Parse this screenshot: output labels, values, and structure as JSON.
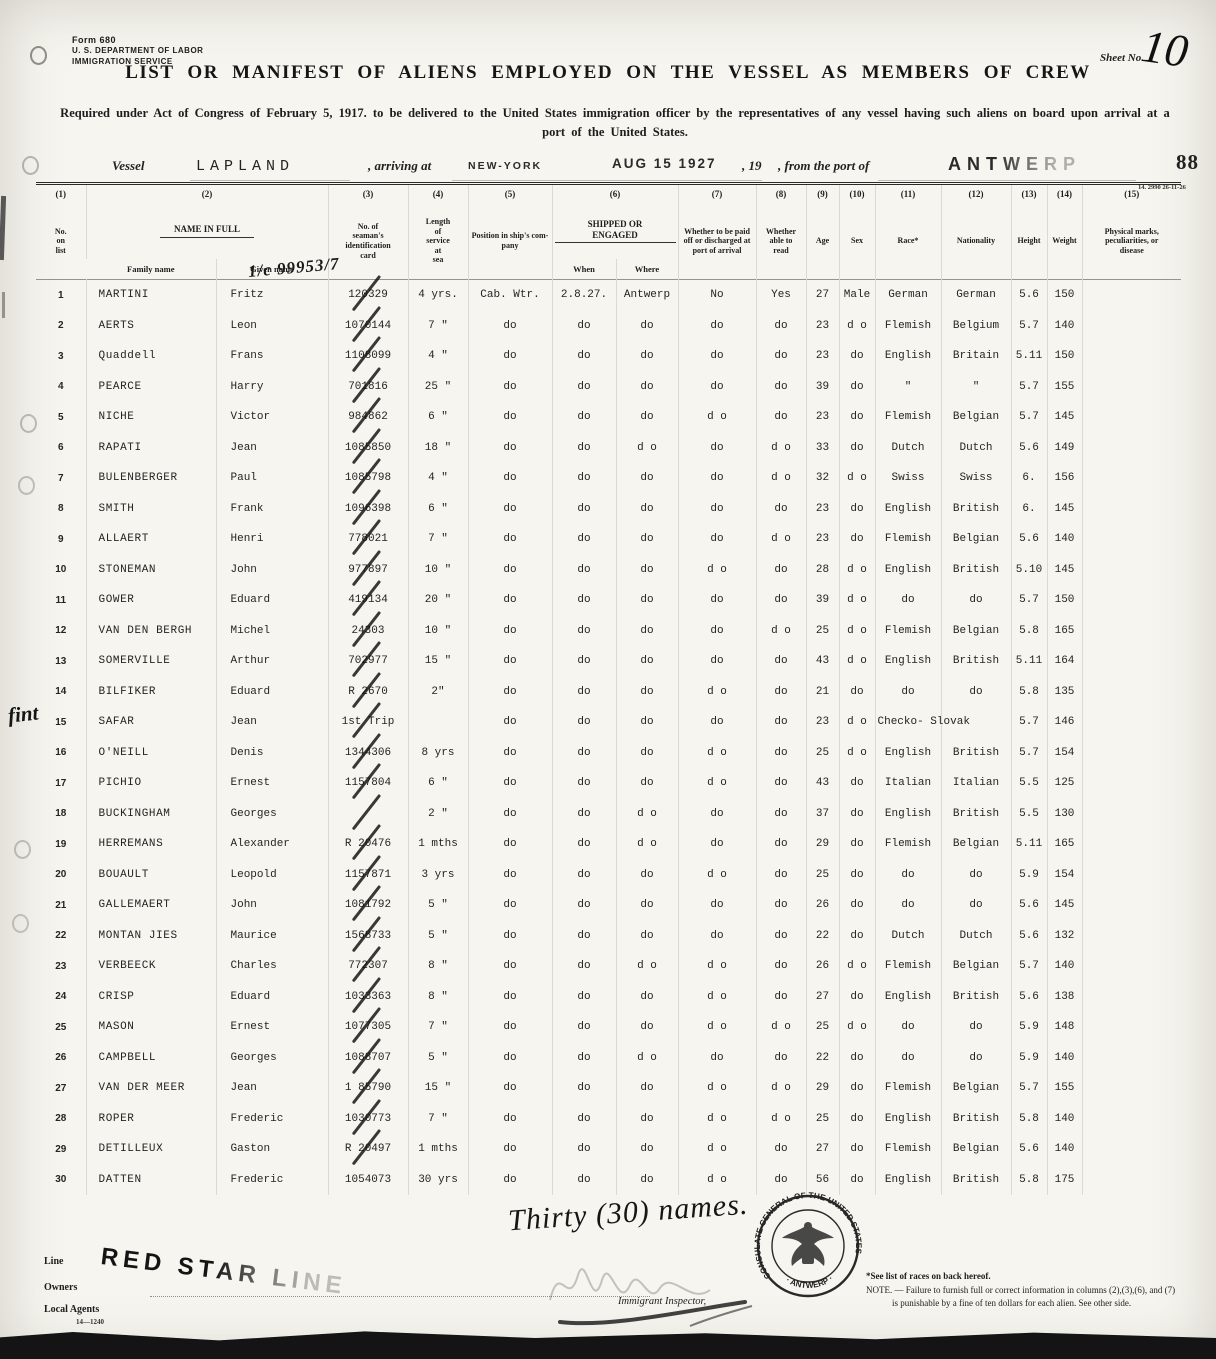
{
  "header": {
    "form_label": "Form 680",
    "agency_line1": "U. S. DEPARTMENT OF LABOR",
    "agency_line2": "IMMIGRATION SERVICE",
    "sheet_label": "Sheet No.",
    "sheet_number": "10",
    "title": "LIST OR MANIFEST OF ALIENS EMPLOYED ON THE VESSEL AS MEMBERS OF CREW",
    "subtitle_line1": "Required under Act of Congress of February 5, 1917. to be delivered to the United States immigration officer by the representatives of any vessel having such aliens on board upon arrival at a",
    "subtitle_line2": "port of the United States.",
    "vessel_label": "Vessel",
    "vessel_name": "LAPLAND",
    "arriving_label": ", arriving at",
    "arrival_port": "NEW-YORK",
    "arrival_date_stamp": "AUG 15 1927",
    "year_label": ", 19",
    "from_port_label": ", from the port of",
    "departure_port": "ANTWERP",
    "page_number": "88",
    "form_code": "14. 2990 26-11-26",
    "handwritten_annotation": "1/c 99953/7"
  },
  "margin_note": "fint",
  "table": {
    "column_numbers": [
      "(1)",
      "(2)",
      "(3)",
      "(4)",
      "(5)",
      "(6)",
      "(7)",
      "(8)",
      "(9)",
      "(10)",
      "(11)",
      "(12)",
      "(13)",
      "(14)",
      "(15)"
    ],
    "headers": {
      "no": "No.\non\nlist",
      "name_group": "NAME IN FULL",
      "family": "Family name",
      "given": "Given name",
      "card": "No. of\nseaman's\nidentification\ncard",
      "service": "Length\nof\nservice\nat\nsea",
      "position": "Position in ship's com-\npany",
      "shipped_group": "SHIPPED OR ENGAGED",
      "when": "When",
      "where": "Where",
      "paid_off": "Whether to be paid\noff or discharged at\nport of arrival",
      "read": "Whether\nable to\nread",
      "age": "Age",
      "sex": "Sex",
      "race": "Race*",
      "nationality": "Nationality",
      "height": "Height",
      "weight": "Weight",
      "marks": "Physical marks,\npeculiarities, or\ndisease"
    },
    "rows": [
      {
        "no": "1",
        "family": "MARTINI",
        "given": "Fritz",
        "card": "120329",
        "service": "4 yrs.",
        "position": "Cab. Wtr.",
        "when": "2.8.27.",
        "where": "Antwerp",
        "paid_off": "No",
        "read": "Yes",
        "age": "27",
        "sex": "Male",
        "race": "German",
        "nationality": "German",
        "height": "5.6",
        "weight": "150",
        "marks": ""
      },
      {
        "no": "2",
        "family": "AERTS",
        "given": "Leon",
        "card": "1070144",
        "service": "7 \"",
        "position": "do",
        "when": "do",
        "where": "do",
        "paid_off": "do",
        "read": "do",
        "age": "23",
        "sex": "d o",
        "race": "Flemish",
        "nationality": "Belgium",
        "height": "5.7",
        "weight": "140",
        "marks": ""
      },
      {
        "no": "3",
        "family": "Quaddell",
        "given": "Frans",
        "card": "1108099",
        "service": "4 \"",
        "position": "do",
        "when": "do",
        "where": "do",
        "paid_off": "do",
        "read": "do",
        "age": "23",
        "sex": "do",
        "race": "English",
        "nationality": "Britain",
        "height": "5.11",
        "weight": "150",
        "marks": ""
      },
      {
        "no": "4",
        "family": "PEARCE",
        "given": "Harry",
        "card": "701816",
        "service": "25 \"",
        "position": "do",
        "when": "do",
        "where": "do",
        "paid_off": "do",
        "read": "do",
        "age": "39",
        "sex": "do",
        "race": "\"",
        "nationality": "\"",
        "height": "5.7",
        "weight": "155",
        "marks": ""
      },
      {
        "no": "5",
        "family": "NICHE",
        "given": "Victor",
        "card": "984862",
        "service": "6 \"",
        "position": "do",
        "when": "do",
        "where": "do",
        "paid_off": "d o",
        "read": "do",
        "age": "23",
        "sex": "do",
        "race": "Flemish",
        "nationality": "Belgian",
        "height": "5.7",
        "weight": "145",
        "marks": ""
      },
      {
        "no": "6",
        "family": "RAPATI",
        "given": "Jean",
        "card": "1085850",
        "service": "18 \"",
        "position": "do",
        "when": "do",
        "where": "d o",
        "paid_off": "do",
        "read": "d o",
        "age": "33",
        "sex": "do",
        "race": "Dutch",
        "nationality": "Dutch",
        "height": "5.6",
        "weight": "149",
        "marks": ""
      },
      {
        "no": "7",
        "family": "BULENBERGER",
        "given": "Paul",
        "card": "1085798",
        "service": "4 \"",
        "position": "do",
        "when": "do",
        "where": "do",
        "paid_off": "do",
        "read": "d o",
        "age": "32",
        "sex": "d o",
        "race": "Swiss",
        "nationality": "Swiss",
        "height": "6.",
        "weight": "156",
        "marks": ""
      },
      {
        "no": "8",
        "family": "SMITH",
        "given": "Frank",
        "card": "1096398",
        "service": "6 \"",
        "position": "do",
        "when": "do",
        "where": "do",
        "paid_off": "do",
        "read": "do",
        "age": "23",
        "sex": "do",
        "race": "English",
        "nationality": "British",
        "height": "6.",
        "weight": "145",
        "marks": ""
      },
      {
        "no": "9",
        "family": "ALLAERT",
        "given": "Henri",
        "card": "778021",
        "service": "7 \"",
        "position": "do",
        "when": "do",
        "where": "do",
        "paid_off": "do",
        "read": "d o",
        "age": "23",
        "sex": "do",
        "race": "Flemish",
        "nationality": "Belgian",
        "height": "5.6",
        "weight": "140",
        "marks": ""
      },
      {
        "no": "10",
        "family": "STONEMAN",
        "given": "John",
        "card": "977897",
        "service": "10 \"",
        "position": "do",
        "when": "do",
        "where": "do",
        "paid_off": "d o",
        "read": "do",
        "age": "28",
        "sex": "d o",
        "race": "English",
        "nationality": "British",
        "height": "5.10",
        "weight": "145",
        "marks": ""
      },
      {
        "no": "11",
        "family": "GOWER",
        "given": "Eduard",
        "card": "419134",
        "service": "20 \"",
        "position": "do",
        "when": "do",
        "where": "do",
        "paid_off": "do",
        "read": "do",
        "age": "39",
        "sex": "d o",
        "race": "do",
        "nationality": "do",
        "height": "5.7",
        "weight": "150",
        "marks": ""
      },
      {
        "no": "12",
        "family": "VAN DEN BERGH",
        "given": "Michel",
        "card": "24303",
        "service": "10 \"",
        "position": "do",
        "when": "do",
        "where": "do",
        "paid_off": "do",
        "read": "d o",
        "age": "25",
        "sex": "d o",
        "race": "Flemish",
        "nationality": "Belgian",
        "height": "5.8",
        "weight": "165",
        "marks": ""
      },
      {
        "no": "13",
        "family": "SOMERVILLE",
        "given": "Arthur",
        "card": "702977",
        "service": "15 \"",
        "position": "do",
        "when": "do",
        "where": "do",
        "paid_off": "do",
        "read": "do",
        "age": "43",
        "sex": "d o",
        "race": "English",
        "nationality": "British",
        "height": "5.11",
        "weight": "164",
        "marks": ""
      },
      {
        "no": "14",
        "family": "BILFIKER",
        "given": "Eduard",
        "card": "R 2670",
        "service": "2\"",
        "position": "do",
        "when": "do",
        "where": "do",
        "paid_off": "d o",
        "read": "do",
        "age": "21",
        "sex": "do",
        "race": "do",
        "nationality": "do",
        "height": "5.8",
        "weight": "135",
        "marks": ""
      },
      {
        "no": "15",
        "family": "SAFAR",
        "given": "Jean",
        "card": "1st Trip",
        "service": "",
        "position": "do",
        "when": "do",
        "where": "do",
        "paid_off": "do",
        "read": "do",
        "age": "23",
        "sex": "d o",
        "race": "Checko- Slovak",
        "nationality": "",
        "height": "5.7",
        "weight": "146",
        "marks": ""
      },
      {
        "no": "16",
        "family": "O'NEILL",
        "given": "Denis",
        "card": "1344306",
        "service": "8 yrs",
        "position": "do",
        "when": "do",
        "where": "do",
        "paid_off": "d o",
        "read": "do",
        "age": "25",
        "sex": "d o",
        "race": "English",
        "nationality": "British",
        "height": "5.7",
        "weight": "154",
        "marks": ""
      },
      {
        "no": "17",
        "family": "PICHIO",
        "given": "Ernest",
        "card": "1157804",
        "service": "6 \"",
        "position": "do",
        "when": "do",
        "where": "do",
        "paid_off": "d o",
        "read": "do",
        "age": "43",
        "sex": "do",
        "race": "Italian",
        "nationality": "Italian",
        "height": "5.5",
        "weight": "125",
        "marks": ""
      },
      {
        "no": "18",
        "family": "BUCKINGHAM",
        "given": "Georges",
        "card": "",
        "service": "2 \"",
        "position": "do",
        "when": "do",
        "where": "d o",
        "paid_off": "do",
        "read": "do",
        "age": "37",
        "sex": "do",
        "race": "English",
        "nationality": "British",
        "height": "5.5",
        "weight": "130",
        "marks": ""
      },
      {
        "no": "19",
        "family": "HERREMANS",
        "given": "Alexander",
        "card": "R 20476",
        "service": "1 mths",
        "position": "do",
        "when": "do",
        "where": "d o",
        "paid_off": "do",
        "read": "do",
        "age": "29",
        "sex": "do",
        "race": "Flemish",
        "nationality": "Belgian",
        "height": "5.11",
        "weight": "165",
        "marks": ""
      },
      {
        "no": "20",
        "family": "BOUAULT",
        "given": "Leopold",
        "card": "1157871",
        "service": "3 yrs",
        "position": "do",
        "when": "do",
        "where": "do",
        "paid_off": "d o",
        "read": "do",
        "age": "25",
        "sex": "do",
        "race": "do",
        "nationality": "do",
        "height": "5.9",
        "weight": "154",
        "marks": ""
      },
      {
        "no": "21",
        "family": "GALLEMAERT",
        "given": "John",
        "card": "1081792",
        "service": "5 \"",
        "position": "do",
        "when": "do",
        "where": "do",
        "paid_off": "do",
        "read": "do",
        "age": "26",
        "sex": "do",
        "race": "do",
        "nationality": "do",
        "height": "5.6",
        "weight": "145",
        "marks": ""
      },
      {
        "no": "22",
        "family": "MONTAN JIES",
        "given": "Maurice",
        "card": "1568733",
        "service": "5 \"",
        "position": "do",
        "when": "do",
        "where": "do",
        "paid_off": "do",
        "read": "do",
        "age": "22",
        "sex": "do",
        "race": "Dutch",
        "nationality": "Dutch",
        "height": "5.6",
        "weight": "132",
        "marks": ""
      },
      {
        "no": "23",
        "family": "VERBEECK",
        "given": "Charles",
        "card": "772307",
        "service": "8 \"",
        "position": "do",
        "when": "do",
        "where": "d o",
        "paid_off": "d o",
        "read": "do",
        "age": "26",
        "sex": "d o",
        "race": "Flemish",
        "nationality": "Belgian",
        "height": "5.7",
        "weight": "140",
        "marks": ""
      },
      {
        "no": "24",
        "family": "CRISP",
        "given": "Eduard",
        "card": "1033363",
        "service": "8 \"",
        "position": "do",
        "when": "do",
        "where": "do",
        "paid_off": "d o",
        "read": "do",
        "age": "27",
        "sex": "do",
        "race": "English",
        "nationality": "British",
        "height": "5.6",
        "weight": "138",
        "marks": ""
      },
      {
        "no": "25",
        "family": "MASON",
        "given": "Ernest",
        "card": "1077305",
        "service": "7 \"",
        "position": "do",
        "when": "do",
        "where": "do",
        "paid_off": "d o",
        "read": "d o",
        "age": "25",
        "sex": "d o",
        "race": "do",
        "nationality": "do",
        "height": "5.9",
        "weight": "148",
        "marks": ""
      },
      {
        "no": "26",
        "family": "CAMPBELL",
        "given": "Georges",
        "card": "1088707",
        "service": "5 \"",
        "position": "do",
        "when": "do",
        "where": "d o",
        "paid_off": "do",
        "read": "do",
        "age": "22",
        "sex": "do",
        "race": "do",
        "nationality": "do",
        "height": "5.9",
        "weight": "140",
        "marks": ""
      },
      {
        "no": "27",
        "family": "VAN DER MEER",
        "given": "Jean",
        "card": "1 85790",
        "service": "15 \"",
        "position": "do",
        "when": "do",
        "where": "do",
        "paid_off": "d o",
        "read": "d o",
        "age": "29",
        "sex": "do",
        "race": "Flemish",
        "nationality": "Belgian",
        "height": "5.7",
        "weight": "155",
        "marks": ""
      },
      {
        "no": "28",
        "family": "ROPER",
        "given": "Frederic",
        "card": "1030773",
        "service": "7 \"",
        "position": "do",
        "when": "do",
        "where": "do",
        "paid_off": "d o",
        "read": "d o",
        "age": "25",
        "sex": "do",
        "race": "English",
        "nationality": "British",
        "height": "5.8",
        "weight": "140",
        "marks": ""
      },
      {
        "no": "29",
        "family": "DETILLEUX",
        "given": "Gaston",
        "card": "R 20497",
        "service": "1 mths",
        "position": "do",
        "when": "do",
        "where": "do",
        "paid_off": "d o",
        "read": "do",
        "age": "27",
        "sex": "do",
        "race": "Flemish",
        "nationality": "Belgian",
        "height": "5.6",
        "weight": "140",
        "marks": ""
      },
      {
        "no": "30",
        "family": "DATTEN",
        "given": "Frederic",
        "card": "1054073",
        "service": "30 yrs",
        "position": "do",
        "when": "do",
        "where": "do",
        "paid_off": "d o",
        "read": "do",
        "age": "56",
        "sex": "do",
        "race": "English",
        "nationality": "British",
        "height": "5.8",
        "weight": "175",
        "marks": ""
      }
    ]
  },
  "footer": {
    "count_note": "Thirty (30) names.",
    "seal_text_top": "CONSULATE GENERAL OF THE UNITED STATES",
    "seal_text_bottom": "· ANTWERP ·",
    "inspector_label": "Immigrant Inspector,",
    "line_label": "Line",
    "owners_label": "Owners",
    "agents_label": "Local Agents",
    "agents_code": "14—1240",
    "owners_stamp": "RED STAR LINE",
    "note_races": "*See list of races on back hereof.",
    "note_main": "NOTE. — Failure to furnish full or correct information in columns (2),(3),(6), and (7)",
    "note_cont": "is punishable by a fine of ten dollars for each alien.   See other side."
  }
}
